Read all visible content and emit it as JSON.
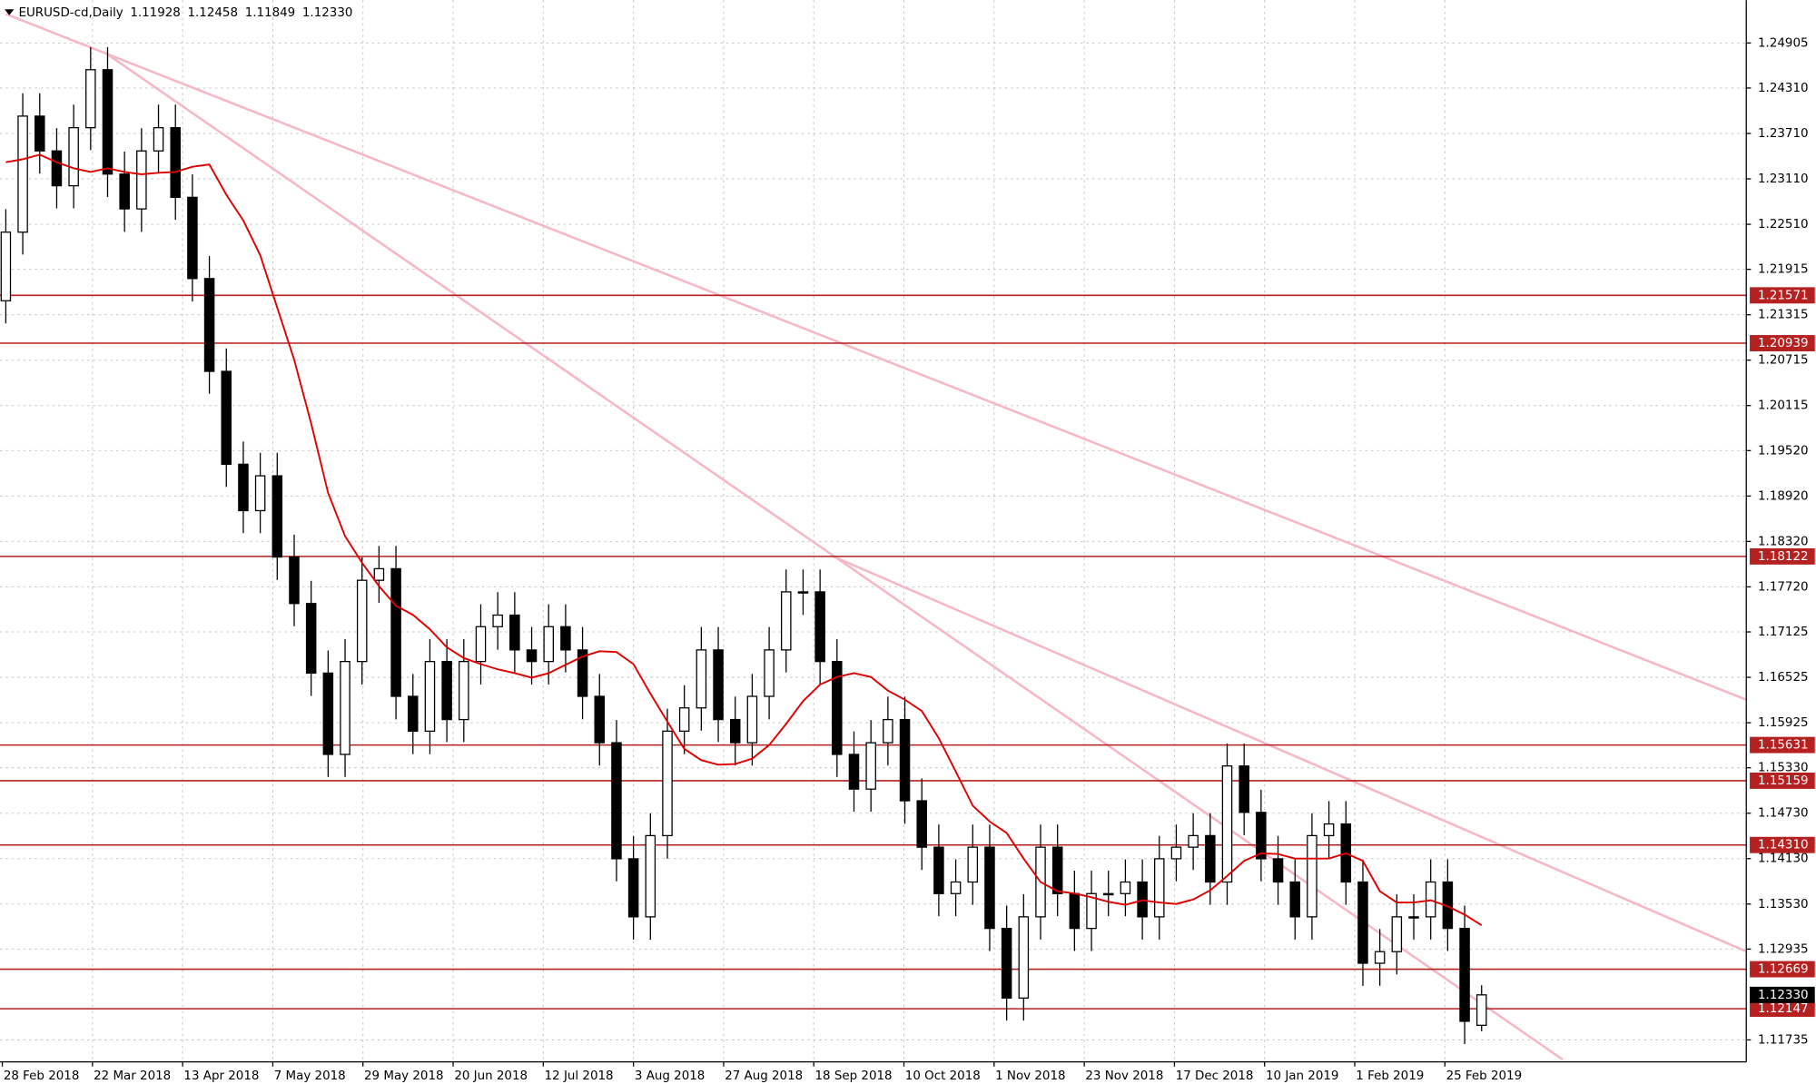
{
  "chart_data": {
    "type": "candlestick",
    "title": "EURUSD-cd,Daily",
    "title_values": [
      "1.11928",
      "1.12458",
      "1.11849",
      "1.12330"
    ],
    "bull_color": "#ffffff",
    "bear_color": "#000000",
    "open": [
      1.215,
      1.22406,
      1.23939,
      1.23479,
      1.23019,
      1.23786,
      1.24552,
      1.23173,
      1.22713,
      1.23479,
      1.23786,
      1.22866,
      1.21793,
      1.20567,
      1.1934,
      1.18727,
      1.19187,
      1.18114,
      1.175,
      1.16581,
      1.15507,
      1.16734,
      1.17807,
      1.1796,
      1.16274,
      1.15814,
      1.16734,
      1.15967,
      1.16734,
      1.17194,
      1.17347,
      1.16887,
      1.16734,
      1.17194,
      1.16887,
      1.16274,
      1.15661,
      1.14128,
      1.13361,
      1.14434,
      1.15814,
      1.16121,
      1.16887,
      1.15967,
      1.15661,
      1.16274,
      1.16887,
      1.17654,
      1.17654,
      1.16734,
      1.15507,
      1.15048,
      1.15661,
      1.15967,
      1.14894,
      1.14281,
      1.13668,
      1.13821,
      1.14281,
      1.13208,
      1.12288,
      1.13361,
      1.14281,
      1.13668,
      1.13208,
      1.13668,
      1.13668,
      1.13821,
      1.13361,
      1.14128,
      1.14281,
      1.14434,
      1.13821,
      1.15354,
      1.14741,
      1.14128,
      1.13821,
      1.13361,
      1.14434,
      1.14588,
      1.13821,
      1.12748,
      1.12901,
      1.13361,
      1.13361,
      1.13821,
      1.13208,
      1.11928
    ],
    "high": [
      1.2271,
      1.2424,
      1.2424,
      1.2378,
      1.2409,
      1.2485,
      1.2485,
      1.2347,
      1.2378,
      1.2409,
      1.2409,
      1.2317,
      1.2209,
      1.2087,
      1.1964,
      1.1949,
      1.1949,
      1.1841,
      1.178,
      1.1688,
      1.1703,
      1.1811,
      1.1826,
      1.1826,
      1.1657,
      1.1703,
      1.1703,
      1.1703,
      1.1749,
      1.1765,
      1.1765,
      1.1719,
      1.1749,
      1.1749,
      1.1719,
      1.1657,
      1.1596,
      1.1443,
      1.1473,
      1.1611,
      1.1642,
      1.1719,
      1.1719,
      1.1627,
      1.1657,
      1.1719,
      1.1795,
      1.1795,
      1.1795,
      1.1703,
      1.1581,
      1.1596,
      1.1627,
      1.1627,
      1.1519,
      1.1458,
      1.1412,
      1.1458,
      1.1458,
      1.1351,
      1.1366,
      1.1458,
      1.1458,
      1.1397,
      1.1397,
      1.1397,
      1.1412,
      1.1412,
      1.1443,
      1.1458,
      1.1473,
      1.1473,
      1.1565,
      1.1565,
      1.1504,
      1.1443,
      1.1412,
      1.1473,
      1.1489,
      1.1489,
      1.1412,
      1.132,
      1.1366,
      1.1366,
      1.1412,
      1.1412,
      1.1351,
      1.12458
    ],
    "low": [
      1.212,
      1.2211,
      1.2318,
      1.2272,
      1.2272,
      1.2349,
      1.2287,
      1.2241,
      1.2241,
      1.2318,
      1.2257,
      1.2149,
      1.2027,
      1.1904,
      1.1843,
      1.1843,
      1.1781,
      1.172,
      1.1628,
      1.1521,
      1.1521,
      1.1643,
      1.1751,
      1.1597,
      1.1551,
      1.1551,
      1.1567,
      1.1567,
      1.1643,
      1.1689,
      1.1659,
      1.1643,
      1.1643,
      1.1659,
      1.1597,
      1.1536,
      1.1383,
      1.1306,
      1.1306,
      1.1413,
      1.1551,
      1.1582,
      1.1567,
      1.1536,
      1.1536,
      1.1597,
      1.1659,
      1.1735,
      1.1643,
      1.1521,
      1.1475,
      1.1475,
      1.1536,
      1.1459,
      1.1398,
      1.1337,
      1.1337,
      1.1352,
      1.1291,
      1.1199,
      1.1199,
      1.1306,
      1.1337,
      1.1291,
      1.1291,
      1.1337,
      1.1337,
      1.1306,
      1.1306,
      1.1383,
      1.1398,
      1.1352,
      1.1352,
      1.1444,
      1.1383,
      1.1352,
      1.1306,
      1.1306,
      1.1413,
      1.1352,
      1.1245,
      1.1245,
      1.126,
      1.1306,
      1.1306,
      1.1291,
      1.1168,
      1.11849
    ],
    "close": [
      1.22406,
      1.23939,
      1.23479,
      1.23019,
      1.23786,
      1.24552,
      1.23173,
      1.22713,
      1.23479,
      1.23786,
      1.22866,
      1.21793,
      1.20567,
      1.1934,
      1.18727,
      1.19187,
      1.18114,
      1.175,
      1.16581,
      1.15507,
      1.16734,
      1.17807,
      1.1796,
      1.16274,
      1.15814,
      1.16734,
      1.15967,
      1.16734,
      1.17194,
      1.17347,
      1.16887,
      1.16734,
      1.17194,
      1.16887,
      1.16274,
      1.15661,
      1.14128,
      1.13361,
      1.14434,
      1.15814,
      1.16121,
      1.16887,
      1.15967,
      1.15661,
      1.16274,
      1.16887,
      1.17654,
      1.17654,
      1.16734,
      1.15507,
      1.15048,
      1.15661,
      1.15967,
      1.14894,
      1.14281,
      1.13668,
      1.13821,
      1.14281,
      1.13208,
      1.12288,
      1.13361,
      1.14281,
      1.13668,
      1.13208,
      1.13668,
      1.13668,
      1.13821,
      1.13361,
      1.14128,
      1.14281,
      1.14434,
      1.13821,
      1.15354,
      1.14741,
      1.14128,
      1.13821,
      1.13361,
      1.14434,
      1.14588,
      1.13821,
      1.12748,
      1.12901,
      1.13361,
      1.13361,
      1.13821,
      1.13208,
      1.11981,
      1.1233
    ],
    "ma": {
      "color": "#e00000",
      "values": [
        1.2333,
        1.2337,
        1.2343,
        1.2333,
        1.2325,
        1.232,
        1.2325,
        1.232,
        1.2317,
        1.2319,
        1.232,
        1.2327,
        1.233,
        1.229,
        1.2256,
        1.221,
        1.2141,
        1.2072,
        1.1988,
        1.1896,
        1.1839,
        1.1804,
        1.1773,
        1.1747,
        1.1735,
        1.1716,
        1.1692,
        1.1678,
        1.167,
        1.1663,
        1.1658,
        1.1652,
        1.1658,
        1.1669,
        1.168,
        1.1687,
        1.1686,
        1.167,
        1.1631,
        1.1594,
        1.1558,
        1.1543,
        1.1537,
        1.1538,
        1.1545,
        1.1563,
        1.1591,
        1.1621,
        1.1643,
        1.1653,
        1.1658,
        1.1653,
        1.1635,
        1.1623,
        1.1608,
        1.1572,
        1.1528,
        1.1483,
        1.1462,
        1.1447,
        1.1413,
        1.1382,
        1.137,
        1.1367,
        1.1362,
        1.1356,
        1.1352,
        1.1358,
        1.1355,
        1.1353,
        1.1359,
        1.1371,
        1.139,
        1.141,
        1.142,
        1.1419,
        1.1413,
        1.1413,
        1.1413,
        1.142,
        1.141,
        1.137,
        1.1355,
        1.1355,
        1.1358,
        1.135,
        1.1339,
        1.1325
      ]
    },
    "levels": [
      1.21571,
      1.20939,
      1.18122,
      1.15631,
      1.15159,
      {
        "value": 1.1431,
        "label": "1.14310"
      },
      1.12669,
      1.12147
    ],
    "level_color": "#b52020",
    "current_price": {
      "value": 1.1233,
      "label": "1.12330"
    },
    "xlabels": [
      "28 Feb 2018",
      "22 Mar 2018",
      "13 Apr 2018",
      "7 May 2018",
      "29 May 2018",
      "20 Jun 2018",
      "12 Jul 2018",
      "3 Aug 2018",
      "27 Aug 2018",
      "18 Sep 2018",
      "10 Oct 2018",
      "1 Nov 2018",
      "23 Nov 2018",
      "17 Dec 2018",
      "10 Jan 2019",
      "1 Feb 2019",
      "25 Feb 2019"
    ],
    "ylim": [
      1.11445,
      1.25472
    ],
    "yticks": [
      1.24905,
      {
        "value": 1.2431,
        "label": "1.24310"
      },
      {
        "value": 1.2371,
        "label": "1.23710"
      },
      {
        "value": 1.2311,
        "label": "1.23110"
      },
      {
        "value": 1.2251,
        "label": "1.22510"
      },
      1.21915,
      1.21315,
      1.20715,
      1.20115,
      {
        "value": 1.1952,
        "label": "1.19520"
      },
      {
        "value": 1.1892,
        "label": "1.18920"
      },
      {
        "value": 1.1832,
        "label": "1.18320"
      },
      {
        "value": 1.1772,
        "label": "1.17720"
      },
      1.17125,
      1.16525,
      1.15925,
      {
        "value": 1.1533,
        "label": "1.15330"
      },
      {
        "value": 1.1473,
        "label": "1.14730"
      },
      {
        "value": 1.1413,
        "label": "1.14130"
      },
      {
        "value": 1.1353,
        "label": "1.13530"
      },
      1.12935,
      1.11735
    ],
    "grid": true
  }
}
